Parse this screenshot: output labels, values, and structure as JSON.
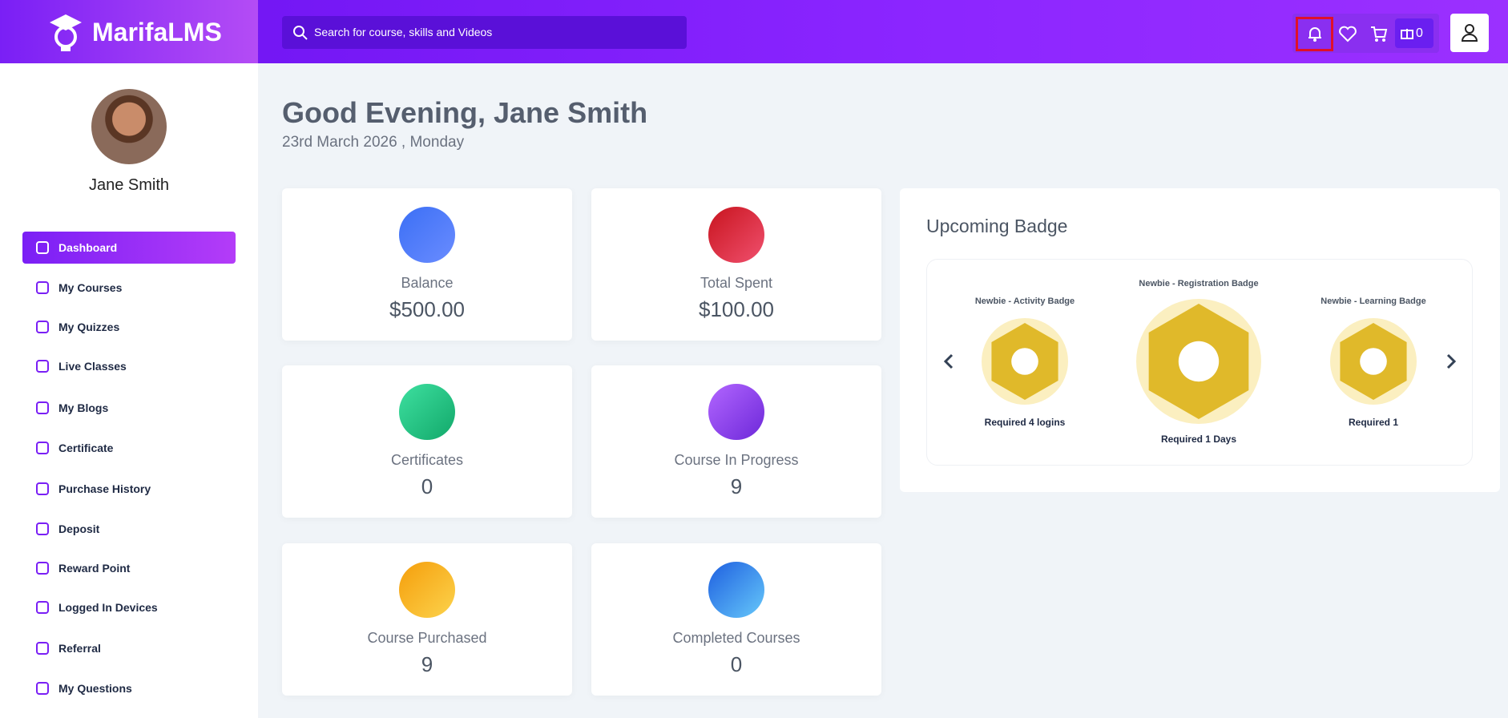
{
  "header": {
    "logo": "MarifaLMS",
    "search_placeholder": "Search for course, skills and Videos",
    "gift_count": "0"
  },
  "sidebar": {
    "user_name": "Jane Smith",
    "menu": [
      "Dashboard",
      "My Courses",
      "My Quizzes",
      "Live Classes",
      "My Blogs",
      "Certificate",
      "Purchase History",
      "Deposit",
      "Reward Point",
      "Logged In Devices",
      "Referral",
      "My Questions"
    ],
    "active": "Dashboard"
  },
  "main": {
    "greeting": "Good Evening, Jane Smith",
    "date": "23rd March 2026 , Monday",
    "cards": [
      {
        "label": "Balance",
        "value": "$500.00"
      },
      {
        "label": "Total Spent",
        "value": "$100.00"
      },
      {
        "label": "Certificates",
        "value": "0"
      },
      {
        "label": "Course In Progress",
        "value": "9"
      },
      {
        "label": "Course Purchased",
        "value": "9"
      },
      {
        "label": "Completed Courses",
        "value": "0"
      }
    ],
    "badge_panel": {
      "title": "Upcoming Badge",
      "badges": [
        {
          "name": "Newbie - Activity Badge",
          "requirement": "Required 4 logins"
        },
        {
          "name": "Newbie - Registration Badge",
          "requirement": "Required 1 Days"
        },
        {
          "name": "Newbie - Learning Badge",
          "requirement": "Required 1"
        }
      ]
    }
  }
}
